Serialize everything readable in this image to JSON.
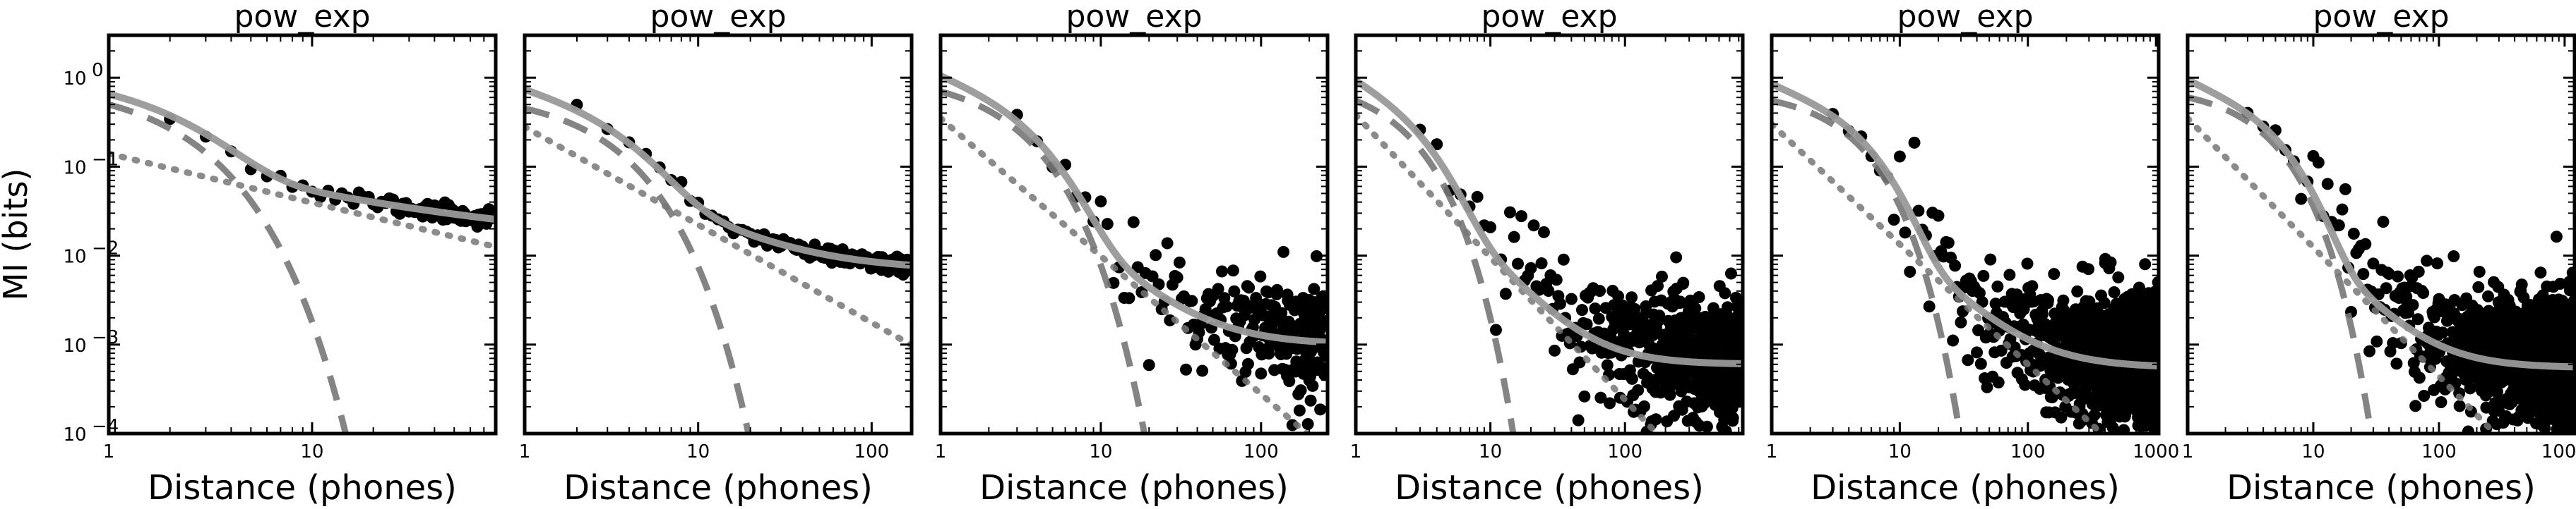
{
  "chart_data": [
    {
      "type": "scatter",
      "title": "pow_exp",
      "xlabel": "Distance (phones)",
      "ylabel": "MI (bits)",
      "xscale": "log",
      "yscale": "log",
      "xlim": [
        1,
        80
      ],
      "ylim": [
        0.0001,
        3
      ],
      "xticks": [
        {
          "value": 1,
          "label": "1"
        },
        {
          "value": 10,
          "label": "10"
        }
      ],
      "yticks": [
        {
          "value": 0.0001,
          "label": "10-4",
          "base": "10",
          "exp": "−4"
        },
        {
          "value": 0.001,
          "label": "10-3",
          "base": "10",
          "exp": "−3"
        },
        {
          "value": 0.01,
          "label": "10-2",
          "base": "10",
          "exp": "−2"
        },
        {
          "value": 0.1,
          "label": "10-1",
          "base": "10",
          "exp": "−1"
        },
        {
          "value": 1,
          "label": "100",
          "base": "10",
          "exp": "0"
        }
      ],
      "model": {
        "pow_a": 0.14,
        "pow_b": 0.55,
        "exp_a": 0.5,
        "exp_scale": 1.6,
        "floor": 0.013
      },
      "scatter": {
        "x_min": 2,
        "x_max": 75,
        "noise": 0.12,
        "seed": 11
      },
      "series": [],
      "grid": false,
      "legend": "none",
      "colors": {
        "points": "#000000",
        "fit": "#999999",
        "components": "#777777"
      }
    },
    {
      "type": "scatter",
      "title": "pow_exp",
      "xlabel": "Distance (phones)",
      "ylabel": "",
      "xscale": "log",
      "yscale": "log",
      "xlim": [
        1,
        170
      ],
      "ylim": [
        0.0001,
        3
      ],
      "xticks": [
        {
          "value": 1,
          "label": "1"
        },
        {
          "value": 10,
          "label": "10"
        },
        {
          "value": 100,
          "label": "100"
        }
      ],
      "yticks": [],
      "model": {
        "pow_a": 0.28,
        "pow_b": 1.1,
        "exp_a": 0.45,
        "exp_scale": 2.2,
        "floor": 0.0068
      },
      "scatter": {
        "x_min": 2,
        "x_max": 165,
        "noise": 0.1,
        "seed": 23
      },
      "series": [],
      "grid": false,
      "legend": "none",
      "colors": {
        "points": "#000000",
        "fit": "#999999",
        "components": "#777777"
      }
    },
    {
      "type": "scatter",
      "title": "pow_exp",
      "xlabel": "Distance (phones)",
      "ylabel": "",
      "xscale": "log",
      "yscale": "log",
      "xlim": [
        1,
        260
      ],
      "ylim": [
        0.0001,
        3
      ],
      "xticks": [
        {
          "value": 1,
          "label": "1"
        },
        {
          "value": 10,
          "label": "10"
        },
        {
          "value": 100,
          "label": "100"
        }
      ],
      "yticks": [],
      "model": {
        "pow_a": 0.35,
        "pow_b": 1.55,
        "exp_a": 0.7,
        "exp_scale": 2.0,
        "floor": 0.001
      },
      "scatter": {
        "x_min": 3,
        "x_max": 255,
        "noise": 0.5,
        "seed": 37
      },
      "series": [],
      "grid": false,
      "legend": "none",
      "colors": {
        "points": "#000000",
        "fit": "#999999",
        "components": "#777777"
      }
    },
    {
      "type": "scatter",
      "title": "pow_exp",
      "xlabel": "Distance (phones)",
      "ylabel": "",
      "xscale": "log",
      "yscale": "log",
      "xlim": [
        1,
        750
      ],
      "ylim": [
        0.0001,
        3
      ],
      "xticks": [
        {
          "value": 1,
          "label": "1"
        },
        {
          "value": 10,
          "label": "10"
        },
        {
          "value": 100,
          "label": "100"
        }
      ],
      "yticks": [],
      "model": {
        "pow_a": 0.38,
        "pow_b": 1.6,
        "exp_a": 0.55,
        "exp_scale": 1.6,
        "floor": 0.0006
      },
      "scatter": {
        "x_min": 3,
        "x_max": 740,
        "noise": 0.55,
        "seed": 53
      },
      "series": [],
      "grid": false,
      "legend": "none",
      "colors": {
        "points": "#000000",
        "fit": "#999999",
        "components": "#777777"
      }
    },
    {
      "type": "scatter",
      "title": "pow_exp",
      "xlabel": "Distance (phones)",
      "ylabel": "",
      "xscale": "log",
      "yscale": "log",
      "xlim": [
        1,
        1050
      ],
      "ylim": [
        0.0001,
        3
      ],
      "xticks": [
        {
          "value": 1,
          "label": "1"
        },
        {
          "value": 10,
          "label": "10"
        },
        {
          "value": 100,
          "label": "100"
        },
        {
          "value": 1000,
          "label": "1000"
        }
      ],
      "yticks": [],
      "model": {
        "pow_a": 0.3,
        "pow_b": 1.35,
        "exp_a": 0.55,
        "exp_scale": 3.3,
        "floor": 0.00055
      },
      "scatter": {
        "x_min": 3,
        "x_max": 1040,
        "noise": 0.55,
        "seed": 71
      },
      "series": [],
      "grid": false,
      "legend": "none",
      "colors": {
        "points": "#000000",
        "fit": "#999999",
        "components": "#777777"
      }
    },
    {
      "type": "scatter",
      "title": "pow_exp",
      "xlabel": "Distance (phones)",
      "ylabel": "",
      "xscale": "log",
      "yscale": "log",
      "xlim": [
        1,
        1200
      ],
      "ylim": [
        0.0001,
        3
      ],
      "xticks": [
        {
          "value": 1,
          "label": "1"
        },
        {
          "value": 10,
          "label": "10"
        },
        {
          "value": 100,
          "label": "100"
        },
        {
          "value": 1000,
          "label": "1000"
        }
      ],
      "yticks": [],
      "model": {
        "pow_a": 0.35,
        "pow_b": 1.45,
        "exp_a": 0.6,
        "exp_scale": 3.2,
        "floor": 0.00055
      },
      "scatter": {
        "x_min": 3,
        "x_max": 1190,
        "noise": 0.55,
        "seed": 89
      },
      "series": [],
      "grid": false,
      "legend": "none",
      "colors": {
        "points": "#000000",
        "fit": "#999999",
        "components": "#777777"
      }
    }
  ]
}
